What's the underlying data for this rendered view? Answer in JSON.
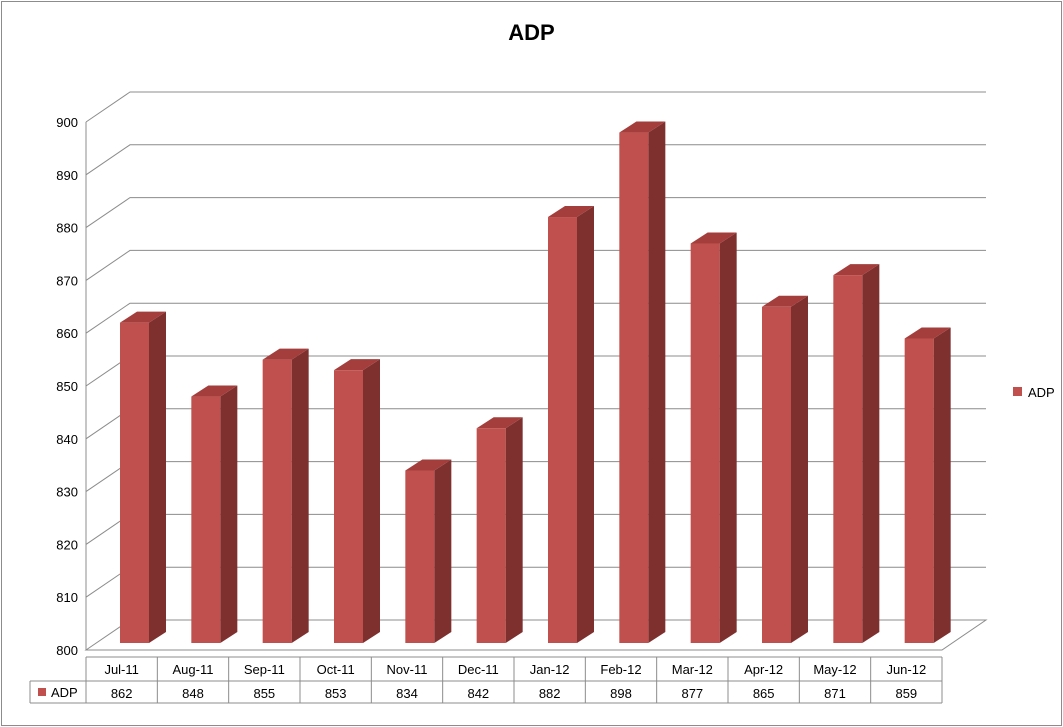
{
  "chart_data": {
    "type": "bar",
    "title": "ADP",
    "categories": [
      "Jul-11",
      "Aug-11",
      "Sep-11",
      "Oct-11",
      "Nov-11",
      "Dec-11",
      "Jan-12",
      "Feb-12",
      "Mar-12",
      "Apr-12",
      "May-12",
      "Jun-12"
    ],
    "series": [
      {
        "name": "ADP",
        "values": [
          862,
          848,
          855,
          853,
          834,
          842,
          882,
          898,
          877,
          865,
          871,
          859
        ]
      }
    ],
    "value_labels": [
      "862",
      "848",
      "855",
      "853",
      "834",
      "842",
      "882",
      "898",
      "877",
      "865",
      "871",
      "859"
    ],
    "yticks": [
      "800",
      "810",
      "820",
      "830",
      "840",
      "850",
      "860",
      "870",
      "880",
      "890",
      "900"
    ],
    "ylim": [
      800,
      900
    ],
    "grid": true,
    "legend": "right",
    "data_table": true,
    "colors": {
      "bar_front": "#c0504d",
      "bar_side": "#7e302f",
      "bar_top": "#a33e3c",
      "grid": "#8c8c8c"
    }
  }
}
